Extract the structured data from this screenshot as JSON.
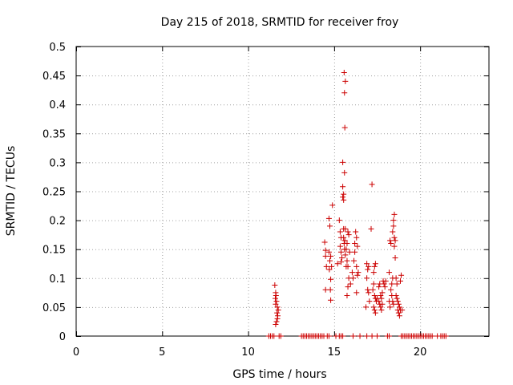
{
  "chart_data": {
    "type": "scatter",
    "title": "Day 215 of 2018, SRMTID for receiver froy",
    "xlabel": "GPS time / hours",
    "ylabel": "SRMTID / TECUs",
    "xlim": [
      0,
      24
    ],
    "ylim": [
      0,
      0.5
    ],
    "xticks": [
      0,
      5,
      10,
      15,
      20
    ],
    "yticks": [
      0,
      0.05,
      0.1,
      0.15,
      0.2,
      0.25,
      0.3,
      0.35,
      0.4,
      0.45,
      0.5
    ],
    "xtick_labels": [
      "0",
      "5",
      "10",
      "15",
      "20"
    ],
    "ytick_labels": [
      "0",
      "0.05",
      "0.1",
      "0.15",
      "0.2",
      "0.25",
      "0.3",
      "0.35",
      "0.4",
      "0.45",
      "0.5"
    ],
    "grid": true,
    "marker": "+",
    "color": "#cc0000",
    "series": [
      {
        "name": "SRMTID",
        "points": [
          [
            11.2,
            0
          ],
          [
            11.3,
            0
          ],
          [
            11.4,
            0
          ],
          [
            11.5,
            0
          ],
          [
            11.8,
            0
          ],
          [
            11.9,
            0
          ],
          [
            13.1,
            0
          ],
          [
            13.2,
            0
          ],
          [
            13.3,
            0
          ],
          [
            13.4,
            0
          ],
          [
            13.5,
            0
          ],
          [
            13.6,
            0
          ],
          [
            13.7,
            0
          ],
          [
            13.8,
            0
          ],
          [
            13.9,
            0
          ],
          [
            14.0,
            0
          ],
          [
            14.1,
            0
          ],
          [
            14.2,
            0
          ],
          [
            14.3,
            0
          ],
          [
            14.4,
            0
          ],
          [
            14.6,
            0
          ],
          [
            14.7,
            0
          ],
          [
            15.1,
            0
          ],
          [
            15.3,
            0
          ],
          [
            15.4,
            0
          ],
          [
            15.5,
            0
          ],
          [
            16.1,
            0
          ],
          [
            16.5,
            0
          ],
          [
            16.9,
            0
          ],
          [
            17.2,
            0
          ],
          [
            17.5,
            0
          ],
          [
            18.1,
            0
          ],
          [
            18.2,
            0
          ],
          [
            18.9,
            0
          ],
          [
            19.0,
            0
          ],
          [
            19.1,
            0
          ],
          [
            19.2,
            0
          ],
          [
            19.3,
            0
          ],
          [
            19.4,
            0
          ],
          [
            19.5,
            0
          ],
          [
            19.6,
            0
          ],
          [
            19.7,
            0
          ],
          [
            19.8,
            0
          ],
          [
            19.9,
            0
          ],
          [
            20.0,
            0
          ],
          [
            20.1,
            0
          ],
          [
            20.2,
            0
          ],
          [
            20.3,
            0
          ],
          [
            20.4,
            0
          ],
          [
            20.5,
            0
          ],
          [
            20.6,
            0
          ],
          [
            20.7,
            0
          ],
          [
            21.0,
            0
          ],
          [
            21.2,
            0
          ],
          [
            21.3,
            0
          ],
          [
            21.4,
            0
          ],
          [
            21.5,
            0
          ],
          [
            11.55,
            0.088
          ],
          [
            11.6,
            0.075
          ],
          [
            11.62,
            0.07
          ],
          [
            11.58,
            0.065
          ],
          [
            11.65,
            0.06
          ],
          [
            11.6,
            0.055
          ],
          [
            11.7,
            0.05
          ],
          [
            11.68,
            0.04
          ],
          [
            11.72,
            0.035
          ],
          [
            11.7,
            0.03
          ],
          [
            11.65,
            0.025
          ],
          [
            11.6,
            0.02
          ],
          [
            11.75,
            0.045
          ],
          [
            14.45,
            0.162
          ],
          [
            14.5,
            0.148
          ],
          [
            14.5,
            0.138
          ],
          [
            14.55,
            0.12
          ],
          [
            14.5,
            0.08
          ],
          [
            14.7,
            0.203
          ],
          [
            14.75,
            0.19
          ],
          [
            14.7,
            0.145
          ],
          [
            14.8,
            0.138
          ],
          [
            14.75,
            0.13
          ],
          [
            14.72,
            0.115
          ],
          [
            14.85,
            0.12
          ],
          [
            14.8,
            0.098
          ],
          [
            14.78,
            0.08
          ],
          [
            14.8,
            0.062
          ],
          [
            14.9,
            0.226
          ],
          [
            15.2,
            0.125
          ],
          [
            15.3,
            0.2
          ],
          [
            15.35,
            0.18
          ],
          [
            15.4,
            0.17
          ],
          [
            15.35,
            0.155
          ],
          [
            15.4,
            0.145
          ],
          [
            15.45,
            0.135
          ],
          [
            15.4,
            0.128
          ],
          [
            15.5,
            0.3
          ],
          [
            15.5,
            0.258
          ],
          [
            15.55,
            0.245
          ],
          [
            15.5,
            0.24
          ],
          [
            15.55,
            0.235
          ],
          [
            15.6,
            0.282
          ],
          [
            15.55,
            0.185
          ],
          [
            15.62,
            0.165
          ],
          [
            15.6,
            0.15
          ],
          [
            15.58,
            0.16
          ],
          [
            15.65,
            0.185
          ],
          [
            15.55,
            0.17
          ],
          [
            15.58,
            0.455
          ],
          [
            15.65,
            0.44
          ],
          [
            15.6,
            0.42
          ],
          [
            15.62,
            0.36
          ],
          [
            15.65,
            0.14
          ],
          [
            15.7,
            0.15
          ],
          [
            15.75,
            0.16
          ],
          [
            15.8,
            0.18
          ],
          [
            15.75,
            0.13
          ],
          [
            15.7,
            0.12
          ],
          [
            15.85,
            0.175
          ],
          [
            15.8,
            0.12
          ],
          [
            15.9,
            0.145
          ],
          [
            15.85,
            0.1
          ],
          [
            15.8,
            0.085
          ],
          [
            15.75,
            0.07
          ],
          [
            15.95,
            0.09
          ],
          [
            16.2,
            0.16
          ],
          [
            16.25,
            0.18
          ],
          [
            16.3,
            0.17
          ],
          [
            16.2,
            0.145
          ],
          [
            16.15,
            0.13
          ],
          [
            16.3,
            0.12
          ],
          [
            16.35,
            0.155
          ],
          [
            16.35,
            0.105
          ],
          [
            16.4,
            0.11
          ],
          [
            16.3,
            0.075
          ],
          [
            16.05,
            0.11
          ],
          [
            16.1,
            0.1
          ],
          [
            16.9,
            0.125
          ],
          [
            16.95,
            0.115
          ],
          [
            17.0,
            0.12
          ],
          [
            16.9,
            0.1
          ],
          [
            16.95,
            0.08
          ],
          [
            17.0,
            0.075
          ],
          [
            17.05,
            0.06
          ],
          [
            16.85,
            0.05
          ],
          [
            17.2,
            0.262
          ],
          [
            17.15,
            0.185
          ],
          [
            17.35,
            0.12
          ],
          [
            17.3,
            0.11
          ],
          [
            17.4,
            0.125
          ],
          [
            17.3,
            0.09
          ],
          [
            17.25,
            0.08
          ],
          [
            17.35,
            0.07
          ],
          [
            17.4,
            0.065
          ],
          [
            17.45,
            0.06
          ],
          [
            17.5,
            0.065
          ],
          [
            17.3,
            0.05
          ],
          [
            17.35,
            0.045
          ],
          [
            17.4,
            0.04
          ],
          [
            17.6,
            0.085
          ],
          [
            17.65,
            0.09
          ],
          [
            17.7,
            0.07
          ],
          [
            17.6,
            0.06
          ],
          [
            17.65,
            0.055
          ],
          [
            17.7,
            0.05
          ],
          [
            17.75,
            0.065
          ],
          [
            17.8,
            0.075
          ],
          [
            17.85,
            0.095
          ],
          [
            17.9,
            0.09
          ],
          [
            17.95,
            0.085
          ],
          [
            18.0,
            0.095
          ],
          [
            17.8,
            0.055
          ],
          [
            17.75,
            0.045
          ],
          [
            18.2,
            0.11
          ],
          [
            18.25,
            0.165
          ],
          [
            18.3,
            0.16
          ],
          [
            18.4,
            0.18
          ],
          [
            18.45,
            0.2
          ],
          [
            18.5,
            0.21
          ],
          [
            18.45,
            0.19
          ],
          [
            18.5,
            0.17
          ],
          [
            18.55,
            0.165
          ],
          [
            18.5,
            0.155
          ],
          [
            18.55,
            0.135
          ],
          [
            18.4,
            0.1
          ],
          [
            18.35,
            0.09
          ],
          [
            18.3,
            0.08
          ],
          [
            18.35,
            0.07
          ],
          [
            18.2,
            0.06
          ],
          [
            18.25,
            0.05
          ],
          [
            18.4,
            0.06
          ],
          [
            18.45,
            0.055
          ],
          [
            18.6,
            0.1
          ],
          [
            18.65,
            0.09
          ],
          [
            18.6,
            0.07
          ],
          [
            18.65,
            0.065
          ],
          [
            18.7,
            0.06
          ],
          [
            18.75,
            0.055
          ],
          [
            18.8,
            0.05
          ],
          [
            18.85,
            0.045
          ],
          [
            18.75,
            0.04
          ],
          [
            18.8,
            0.035
          ],
          [
            18.7,
            0.045
          ],
          [
            18.9,
            0.105
          ],
          [
            18.85,
            0.095
          ],
          [
            18.95,
            0.045
          ]
        ]
      }
    ]
  }
}
